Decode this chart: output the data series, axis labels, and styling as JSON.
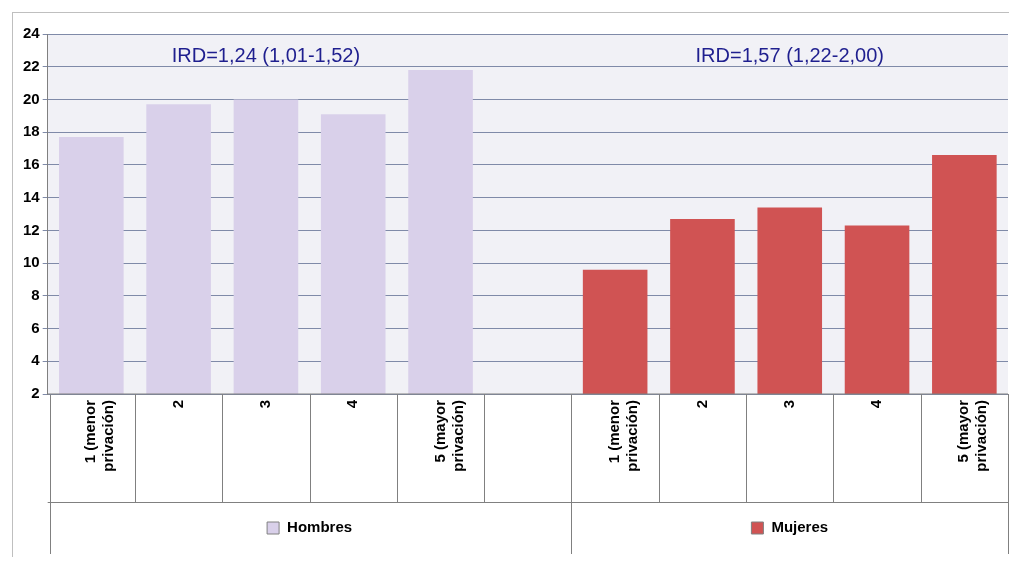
{
  "chart_data": {
    "type": "bar",
    "categories": [
      "1 (menor privación)",
      "2",
      "3",
      "4",
      "5 (mayor privación)",
      null,
      "1 (menor privación)",
      "2",
      "3",
      "4",
      "5 (mayor privación)"
    ],
    "series": [
      {
        "name": "Hombres",
        "color": "#d9d0ea",
        "values": [
          17.7,
          19.7,
          20.0,
          19.1,
          21.8,
          null,
          null,
          null,
          null,
          null,
          null
        ]
      },
      {
        "name": "Mujeres",
        "color": "#d05353",
        "values": [
          null,
          null,
          null,
          null,
          null,
          null,
          9.6,
          12.7,
          13.4,
          12.3,
          16.6
        ]
      }
    ],
    "ylim": [
      2,
      24
    ],
    "yticks": [
      2,
      4,
      6,
      8,
      10,
      12,
      14,
      16,
      18,
      20,
      22,
      24
    ],
    "grid": "y",
    "legend": "bottom",
    "annotations": [
      "IRD=1,24 (1,01-1,52)",
      "IRD=1,57 (1,22-2,00)"
    ]
  }
}
